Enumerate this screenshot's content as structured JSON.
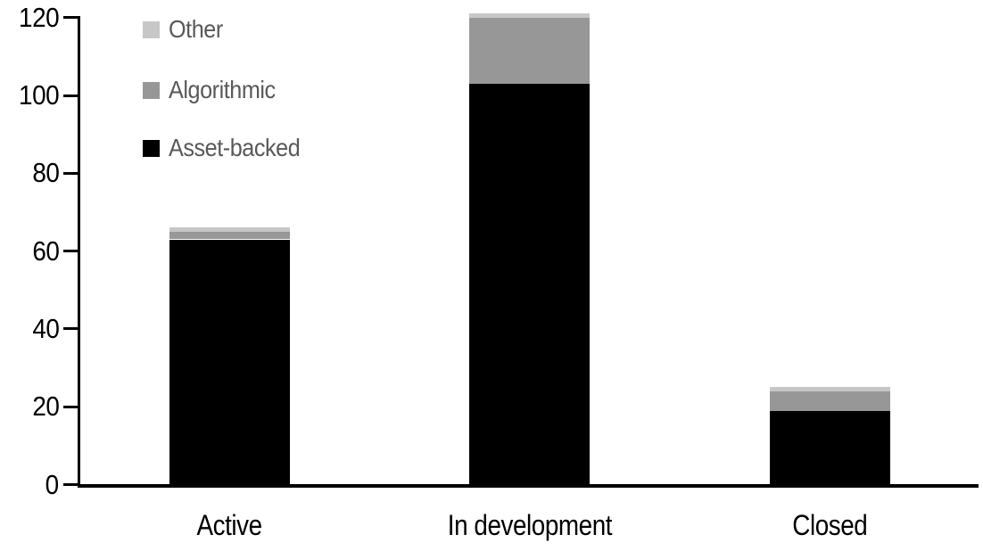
{
  "chart_data": {
    "type": "bar",
    "stacked": true,
    "title": "",
    "xlabel": "",
    "ylabel": "",
    "categories": [
      "Active",
      "In development",
      "Closed"
    ],
    "series": [
      {
        "name": "Asset-backed",
        "color": "#000000",
        "values": [
          63,
          103,
          19
        ]
      },
      {
        "name": "Algorithmic",
        "color": "#979797",
        "values": [
          2,
          17,
          5
        ]
      },
      {
        "name": "Other",
        "color": "#c7c7c7",
        "values": [
          1,
          1,
          1
        ]
      }
    ],
    "category_totals": [
      66,
      121,
      25
    ],
    "y_axis": {
      "min": 0,
      "max": 120,
      "tick_interval": 20,
      "ticks": [
        0,
        20,
        40,
        60,
        80,
        100,
        120
      ]
    },
    "legend": {
      "position": "top-left",
      "order_top_to_bottom": [
        "Other",
        "Algorithmic",
        "Asset-backed"
      ],
      "text_color": "#595959"
    },
    "grid": false,
    "axis_color": "#000000",
    "label_color": "#000000",
    "background_color": "#ffffff"
  }
}
